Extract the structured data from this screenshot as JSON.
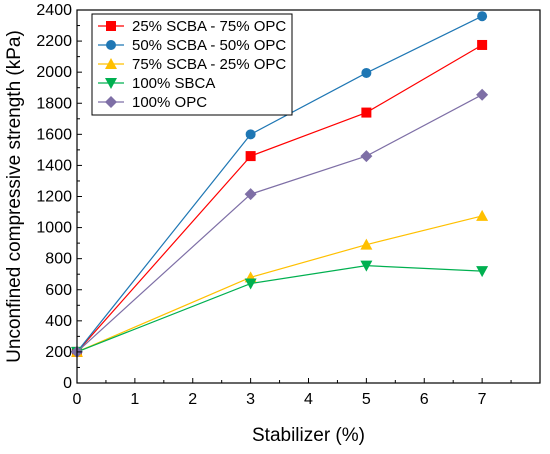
{
  "chart_data": {
    "type": "line",
    "title": "",
    "xlabel": "Stabilizer (%)",
    "ylabel": "Unconfined compressive strength (kPa)",
    "xlim": [
      0,
      8
    ],
    "ylim": [
      0,
      2400
    ],
    "x_ticks": [
      0,
      1,
      2,
      3,
      4,
      5,
      6,
      7
    ],
    "y_ticks": [
      0,
      200,
      400,
      600,
      800,
      1000,
      1200,
      1400,
      1600,
      1800,
      2000,
      2200,
      2400
    ],
    "grid": false,
    "legend_position": "top-left",
    "x": [
      0,
      3,
      5,
      7
    ],
    "series": [
      {
        "name": "25% SCBA - 75% OPC",
        "color": "#ff0000",
        "marker": "square",
        "values": [
          200,
          1460,
          1740,
          2175
        ]
      },
      {
        "name": "50% SCBA - 50% OPC",
        "color": "#1f77b4",
        "marker": "circle",
        "values": [
          200,
          1600,
          1995,
          2360
        ]
      },
      {
        "name": "75% SCBA - 25% OPC",
        "color": "#ffc000",
        "marker": "triangle-up",
        "values": [
          200,
          680,
          890,
          1075
        ]
      },
      {
        "name": "100% SBCA",
        "color": "#00b050",
        "marker": "triangle-down",
        "values": [
          200,
          640,
          755,
          720
        ]
      },
      {
        "name": "100% OPC",
        "color": "#7e6fa6",
        "marker": "diamond",
        "values": [
          200,
          1215,
          1460,
          1855
        ]
      }
    ]
  }
}
